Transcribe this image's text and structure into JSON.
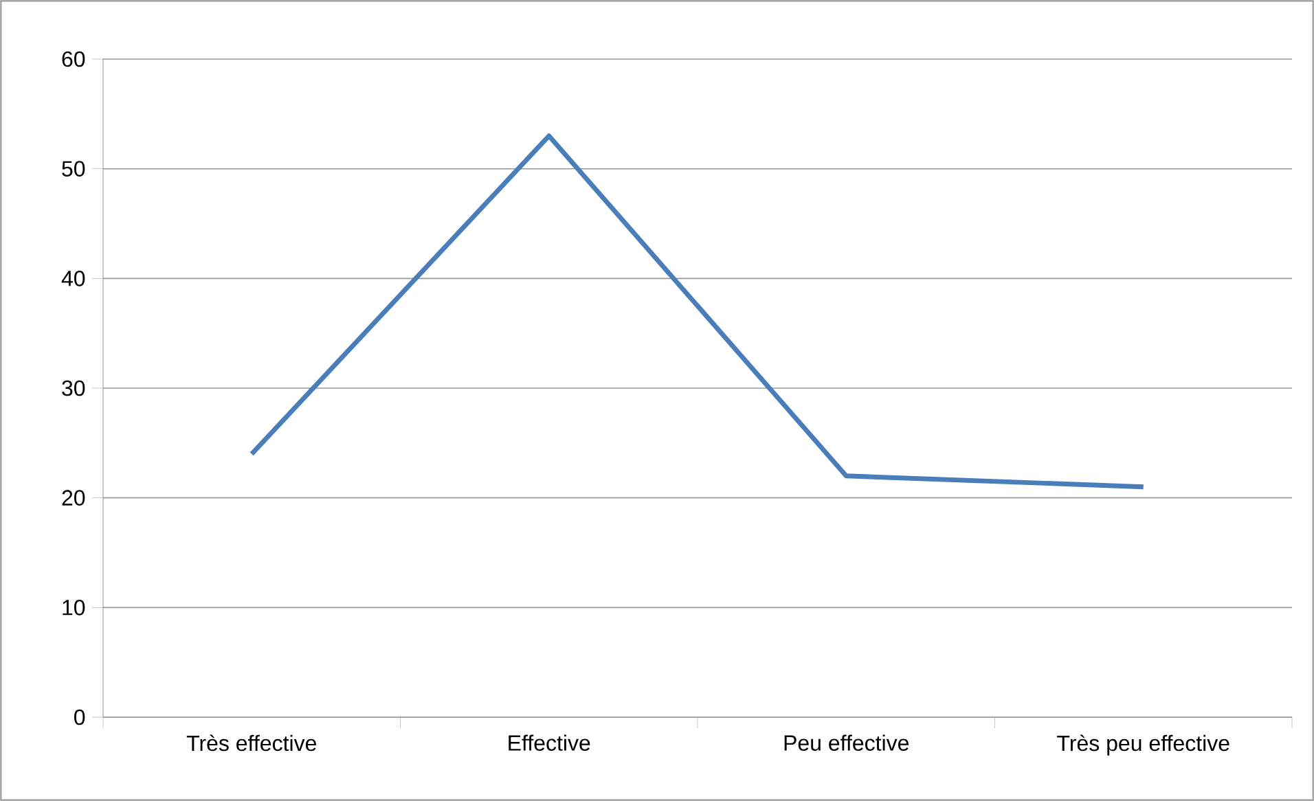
{
  "chart_data": {
    "type": "line",
    "categories": [
      "Très effective",
      "Effective",
      "Peu effective",
      "Très peu effective"
    ],
    "series": [
      {
        "color": "#4a7ebb",
        "values": [
          24,
          53,
          22,
          21
        ]
      }
    ],
    "ylim": [
      0,
      60
    ],
    "yticks": [
      0,
      10,
      20,
      30,
      40,
      50,
      60
    ],
    "grid": "y",
    "marker": "none",
    "line_style": "solid"
  }
}
